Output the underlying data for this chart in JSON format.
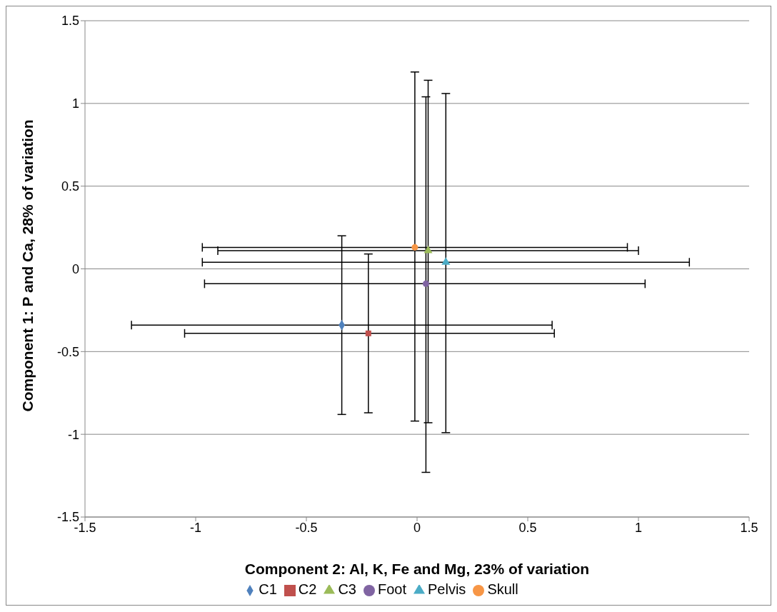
{
  "chart_data": {
    "type": "scatter",
    "xlabel": "Component 2: Al, K, Fe and Mg, 23% of variation",
    "ylabel": "Component 1: P and Ca, 28% of variation",
    "xlim": [
      -1.5,
      1.5
    ],
    "xticks": [
      -1.5,
      -1,
      -0.5,
      0,
      0.5,
      1,
      1.5
    ],
    "ylim": [
      -1.5,
      1.5
    ],
    "yticks": [
      -1.5,
      -1,
      -0.5,
      0,
      0.5,
      1,
      1.5
    ],
    "grid": "y",
    "legend": "bottom",
    "series": [
      {
        "name": "C1",
        "color": "#4f81bd",
        "marker": "diamond",
        "x": [
          -0.34
        ],
        "values": [
          -0.34
        ],
        "xerrors": [
          [
            -1.29,
            0.61
          ]
        ],
        "errors": [
          [
            -0.88,
            0.2
          ]
        ]
      },
      {
        "name": "C2",
        "color": "#c0504d",
        "marker": "square",
        "x": [
          -0.22
        ],
        "values": [
          -0.39
        ],
        "xerrors": [
          [
            -1.05,
            0.62
          ]
        ],
        "errors": [
          [
            -0.87,
            0.09
          ]
        ]
      },
      {
        "name": "C3",
        "color": "#9bbb59",
        "marker": "triangle",
        "x": [
          0.05
        ],
        "values": [
          0.11
        ],
        "xerrors": [
          [
            -0.9,
            1.0
          ]
        ],
        "errors": [
          [
            -0.93,
            1.14
          ]
        ]
      },
      {
        "name": "Foot",
        "color": "#8064a2",
        "marker": "circle",
        "x": [
          0.04
        ],
        "values": [
          -0.09
        ],
        "xerrors": [
          [
            -0.96,
            1.03
          ]
        ],
        "errors": [
          [
            -1.23,
            1.04
          ]
        ]
      },
      {
        "name": "Pelvis",
        "color": "#4bacc6",
        "marker": "triangle",
        "x": [
          0.13
        ],
        "values": [
          0.04
        ],
        "xerrors": [
          [
            -0.97,
            1.23
          ]
        ],
        "errors": [
          [
            -0.99,
            1.06
          ]
        ]
      },
      {
        "name": "Skull",
        "color": "#f79646",
        "marker": "circle",
        "x": [
          -0.01
        ],
        "values": [
          0.13
        ],
        "xerrors": [
          [
            -0.97,
            0.95
          ]
        ],
        "errors": [
          [
            -0.92,
            1.19
          ]
        ]
      }
    ]
  }
}
